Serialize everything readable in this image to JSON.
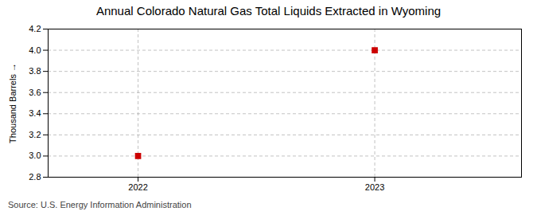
{
  "chart_data": {
    "type": "scatter",
    "title": "Annual Colorado Natural Gas Total Liquids Extracted in Wyoming",
    "ylabel": "Thousand Barrels",
    "caption": "Source: U.S. Energy Information Administration",
    "x": [
      2022,
      2023
    ],
    "values": [
      3.0,
      4.0
    ],
    "color": "#cc0000",
    "marker": "square",
    "xlim": [
      2021.62,
      2023.62
    ],
    "ylim": [
      2.8,
      4.2
    ],
    "xticks": [
      2022,
      2023
    ],
    "yticks": [
      2.8,
      {
        "value": 3.0,
        "label": "3.0"
      },
      3.2,
      3.4,
      3.6,
      3.8,
      {
        "value": 4.0,
        "label": "4.0"
      },
      4.2
    ],
    "grid": true
  }
}
